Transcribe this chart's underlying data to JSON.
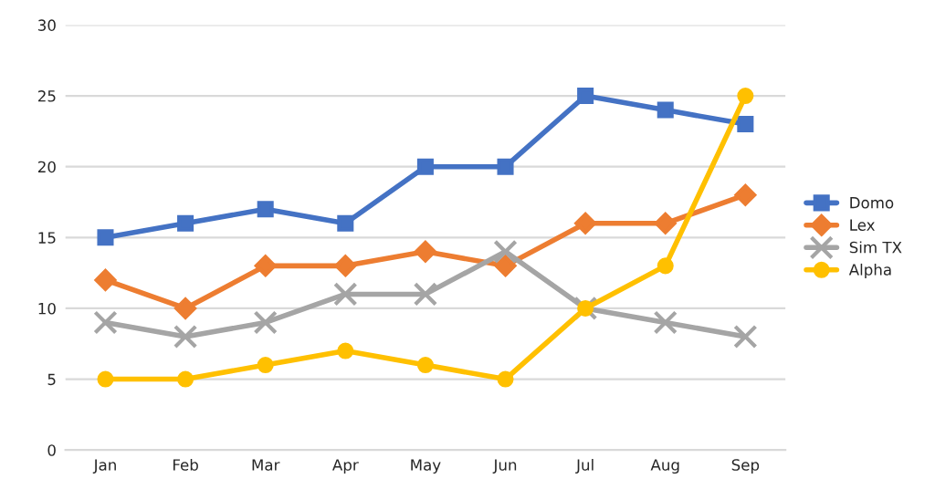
{
  "chart_data": {
    "type": "line",
    "categories": [
      "Jan",
      "Feb",
      "Mar",
      "Apr",
      "May",
      "Jun",
      "Jul",
      "Aug",
      "Sep"
    ],
    "series": [
      {
        "name": "Domo",
        "color": "#4472c4",
        "marker": "square",
        "values": [
          15,
          16,
          17,
          16,
          20,
          20,
          25,
          24,
          23
        ]
      },
      {
        "name": "Lex",
        "color": "#ed7d31",
        "marker": "diamond",
        "values": [
          12,
          10,
          13,
          13,
          14,
          13,
          16,
          16,
          18
        ]
      },
      {
        "name": "Sim TX",
        "color": "#a5a5a5",
        "marker": "cross",
        "values": [
          9,
          8,
          9,
          11,
          11,
          14,
          10,
          9,
          8
        ]
      },
      {
        "name": "Alpha",
        "color": "#ffc000",
        "marker": "circle",
        "values": [
          5,
          5,
          6,
          7,
          6,
          5,
          10,
          13,
          25
        ]
      }
    ],
    "ylim": [
      0,
      30
    ],
    "yticks": [
      0,
      5,
      10,
      15,
      20,
      25,
      30
    ],
    "grid": "y",
    "legend": "right",
    "line_style": "solid"
  }
}
